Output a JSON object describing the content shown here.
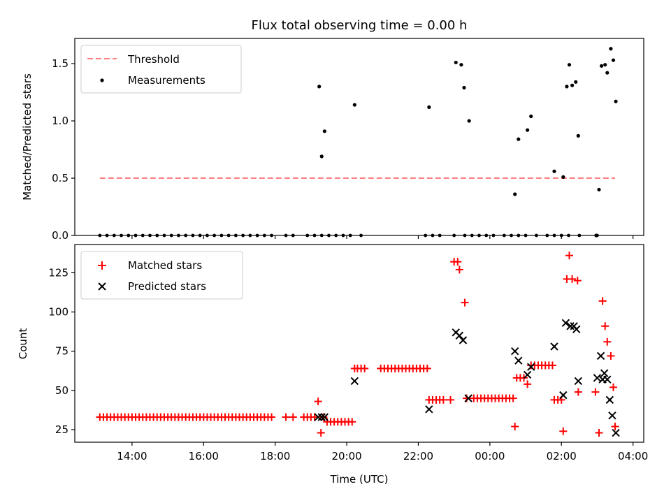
{
  "chart_data": [
    {
      "type": "scatter",
      "title": "Flux total observing time = 0.00 h",
      "xlabel": "",
      "ylabel": "Matched/Predicted stars",
      "xlim_hours": [
        12.4,
        28.3
      ],
      "ylim": [
        0,
        1.72
      ],
      "yticks": [
        0.0,
        0.5,
        1.0,
        1.5
      ],
      "ytick_labels": [
        "0.0",
        "0.5",
        "1.0",
        "1.5"
      ],
      "legend": {
        "position": "upper-left",
        "entries": [
          "Threshold",
          "Measurements"
        ]
      },
      "series": [
        {
          "name": "Threshold",
          "kind": "dashed-line",
          "color": "#ff7f7f",
          "x": [
            13.1,
            27.5
          ],
          "y": [
            0.5,
            0.5
          ]
        },
        {
          "name": "Measurements",
          "kind": "dots",
          "color": "#000000",
          "zero_x": [
            13.1,
            13.3,
            13.5,
            13.7,
            13.9,
            14.1,
            14.3,
            14.5,
            14.7,
            14.9,
            15.1,
            15.3,
            15.5,
            15.7,
            15.9,
            16.1,
            16.3,
            16.5,
            16.7,
            16.9,
            17.1,
            17.3,
            17.5,
            17.7,
            17.9,
            18.3,
            18.5,
            18.9,
            19.1,
            19.3,
            19.5,
            19.7,
            19.9,
            20.1,
            20.4,
            22.2,
            22.4,
            22.6,
            23.0,
            23.3,
            23.5,
            23.7,
            23.9,
            24.1,
            24.4,
            24.6,
            24.8,
            25.0,
            25.3,
            25.6,
            25.8,
            26.0,
            26.2,
            26.5,
            27.0
          ],
          "points": [
            [
              19.23,
              1.3
            ],
            [
              19.3,
              0.69
            ],
            [
              19.38,
              0.91
            ],
            [
              20.22,
              1.14
            ],
            [
              22.3,
              1.12
            ],
            [
              23.05,
              1.51
            ],
            [
              23.2,
              1.49
            ],
            [
              23.28,
              1.29
            ],
            [
              23.42,
              1.0
            ],
            [
              24.7,
              0.36
            ],
            [
              24.8,
              0.84
            ],
            [
              25.05,
              0.92
            ],
            [
              25.15,
              1.04
            ],
            [
              25.8,
              0.56
            ],
            [
              26.05,
              0.51
            ],
            [
              26.15,
              1.3
            ],
            [
              26.22,
              1.49
            ],
            [
              26.3,
              1.31
            ],
            [
              26.4,
              1.34
            ],
            [
              26.47,
              0.87
            ],
            [
              27.05,
              0.4
            ],
            [
              27.12,
              1.48
            ],
            [
              27.22,
              1.49
            ],
            [
              27.28,
              1.42
            ],
            [
              27.38,
              1.63
            ],
            [
              27.45,
              1.53
            ],
            [
              27.52,
              1.17
            ],
            [
              26.97,
              0.0
            ]
          ]
        }
      ]
    },
    {
      "type": "scatter",
      "title": "",
      "xlabel": "Time (UTC)",
      "ylabel": "Count",
      "xlim_hours": [
        12.4,
        28.3
      ],
      "ylim": [
        17,
        143
      ],
      "yticks": [
        25,
        50,
        75,
        100,
        125
      ],
      "ytick_labels": [
        "25",
        "50",
        "75",
        "100",
        "125"
      ],
      "xticks_hours": [
        14,
        16,
        18,
        20,
        22,
        24,
        26,
        28
      ],
      "xtick_labels": [
        "14:00",
        "16:00",
        "18:00",
        "20:00",
        "22:00",
        "00:00",
        "02:00",
        "04:00"
      ],
      "legend": {
        "position": "upper-left",
        "entries": [
          "Matched stars",
          "Predicted stars"
        ]
      },
      "series": [
        {
          "name": "Matched stars",
          "marker": "+",
          "color": "#ff0000",
          "points": [
            [
              13.1,
              33
            ],
            [
              13.2,
              33
            ],
            [
              13.3,
              33
            ],
            [
              13.4,
              33
            ],
            [
              13.5,
              33
            ],
            [
              13.6,
              33
            ],
            [
              13.7,
              33
            ],
            [
              13.8,
              33
            ],
            [
              13.9,
              33
            ],
            [
              14.0,
              33
            ],
            [
              14.1,
              33
            ],
            [
              14.2,
              33
            ],
            [
              14.3,
              33
            ],
            [
              14.4,
              33
            ],
            [
              14.5,
              33
            ],
            [
              14.6,
              33
            ],
            [
              14.7,
              33
            ],
            [
              14.8,
              33
            ],
            [
              14.9,
              33
            ],
            [
              15.0,
              33
            ],
            [
              15.1,
              33
            ],
            [
              15.2,
              33
            ],
            [
              15.3,
              33
            ],
            [
              15.4,
              33
            ],
            [
              15.5,
              33
            ],
            [
              15.6,
              33
            ],
            [
              15.7,
              33
            ],
            [
              15.8,
              33
            ],
            [
              15.9,
              33
            ],
            [
              16.0,
              33
            ],
            [
              16.1,
              33
            ],
            [
              16.2,
              33
            ],
            [
              16.3,
              33
            ],
            [
              16.4,
              33
            ],
            [
              16.5,
              33
            ],
            [
              16.6,
              33
            ],
            [
              16.7,
              33
            ],
            [
              16.8,
              33
            ],
            [
              16.9,
              33
            ],
            [
              17.0,
              33
            ],
            [
              17.1,
              33
            ],
            [
              17.2,
              33
            ],
            [
              17.3,
              33
            ],
            [
              17.4,
              33
            ],
            [
              17.5,
              33
            ],
            [
              17.6,
              33
            ],
            [
              17.7,
              33
            ],
            [
              17.8,
              33
            ],
            [
              17.9,
              33
            ],
            [
              18.3,
              33
            ],
            [
              18.5,
              33
            ],
            [
              18.8,
              33
            ],
            [
              18.9,
              33
            ],
            [
              19.0,
              33
            ],
            [
              19.1,
              33
            ],
            [
              19.2,
              43
            ],
            [
              19.28,
              23
            ],
            [
              19.35,
              33
            ],
            [
              19.45,
              30
            ],
            [
              19.55,
              30
            ],
            [
              19.65,
              30
            ],
            [
              19.75,
              30
            ],
            [
              19.85,
              30
            ],
            [
              19.95,
              30
            ],
            [
              20.05,
              30
            ],
            [
              20.15,
              30
            ],
            [
              20.22,
              64
            ],
            [
              20.3,
              64
            ],
            [
              20.4,
              64
            ],
            [
              20.5,
              64
            ],
            [
              20.95,
              64
            ],
            [
              21.05,
              64
            ],
            [
              21.15,
              64
            ],
            [
              21.25,
              64
            ],
            [
              21.35,
              64
            ],
            [
              21.45,
              64
            ],
            [
              21.55,
              64
            ],
            [
              21.65,
              64
            ],
            [
              21.75,
              64
            ],
            [
              21.85,
              64
            ],
            [
              21.95,
              64
            ],
            [
              22.05,
              64
            ],
            [
              22.15,
              64
            ],
            [
              22.25,
              64
            ],
            [
              22.3,
              44
            ],
            [
              22.4,
              44
            ],
            [
              22.5,
              44
            ],
            [
              22.6,
              44
            ],
            [
              22.7,
              44
            ],
            [
              22.9,
              44
            ],
            [
              23.0,
              132
            ],
            [
              23.1,
              132
            ],
            [
              23.15,
              127
            ],
            [
              23.3,
              106
            ],
            [
              23.35,
              45
            ],
            [
              23.55,
              45
            ],
            [
              23.65,
              45
            ],
            [
              23.75,
              45
            ],
            [
              23.85,
              45
            ],
            [
              23.95,
              45
            ],
            [
              24.05,
              45
            ],
            [
              24.15,
              45
            ],
            [
              24.25,
              45
            ],
            [
              24.35,
              45
            ],
            [
              24.45,
              45
            ],
            [
              24.55,
              45
            ],
            [
              24.65,
              45
            ],
            [
              24.7,
              27
            ],
            [
              24.75,
              58
            ],
            [
              24.85,
              58
            ],
            [
              24.95,
              58
            ],
            [
              25.05,
              54
            ],
            [
              25.15,
              66
            ],
            [
              25.25,
              66
            ],
            [
              25.35,
              66
            ],
            [
              25.45,
              66
            ],
            [
              25.55,
              66
            ],
            [
              25.65,
              66
            ],
            [
              25.75,
              66
            ],
            [
              25.8,
              44
            ],
            [
              25.9,
              44
            ],
            [
              26.0,
              44
            ],
            [
              26.05,
              24
            ],
            [
              26.15,
              121
            ],
            [
              26.22,
              136
            ],
            [
              26.3,
              121
            ],
            [
              26.45,
              120
            ],
            [
              26.47,
              49
            ],
            [
              26.95,
              49
            ],
            [
              27.05,
              23
            ],
            [
              27.15,
              107
            ],
            [
              27.22,
              91
            ],
            [
              27.28,
              81
            ],
            [
              27.38,
              72
            ],
            [
              27.45,
              52
            ],
            [
              27.5,
              27
            ]
          ]
        },
        {
          "name": "Predicted stars",
          "marker": "x",
          "color": "#000000",
          "points": [
            [
              19.2,
              33
            ],
            [
              19.3,
              33
            ],
            [
              19.38,
              33
            ],
            [
              20.22,
              56
            ],
            [
              22.3,
              38
            ],
            [
              23.05,
              87
            ],
            [
              23.15,
              85
            ],
            [
              23.25,
              82
            ],
            [
              23.4,
              45
            ],
            [
              24.7,
              75
            ],
            [
              24.8,
              69
            ],
            [
              25.05,
              60
            ],
            [
              25.15,
              65
            ],
            [
              25.8,
              78
            ],
            [
              26.05,
              47
            ],
            [
              26.12,
              93
            ],
            [
              26.25,
              91
            ],
            [
              26.35,
              91
            ],
            [
              26.42,
              89
            ],
            [
              26.47,
              56
            ],
            [
              27.0,
              58
            ],
            [
              27.1,
              72
            ],
            [
              27.15,
              57
            ],
            [
              27.2,
              61
            ],
            [
              27.28,
              57
            ],
            [
              27.35,
              44
            ],
            [
              27.42,
              34
            ],
            [
              27.52,
              23
            ]
          ]
        }
      ]
    }
  ]
}
